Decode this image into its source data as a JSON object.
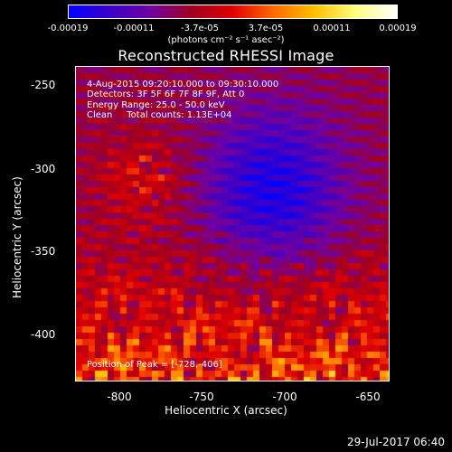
{
  "colorbar": {
    "ticks": [
      "-0.00019",
      "-0.00011",
      "-3.7e-05",
      "3.7e-05",
      "0.00011",
      "0.00019"
    ],
    "units": "(photons cm⁻² s⁻¹ asec⁻²)",
    "colormap": [
      "#0000ff",
      "#3a00c8",
      "#7000a0",
      "#a00020",
      "#e00000",
      "#ff6a00",
      "#ffc000",
      "#ffff80",
      "#ffffff"
    ]
  },
  "title": "Reconstructed RHESSI Image",
  "info": {
    "time": "4-Aug-2015 09:20:10.000 to 09:30:10.000",
    "detectors": "Detectors: 3F 5F 6F 7F 8F 9F, Att 0",
    "energy": "Energy Range: 25.0 - 50.0 keV",
    "clean": "Clean     Total counts: 1.13E+04",
    "peak": "Position of Peak = [-728,-406]"
  },
  "axes": {
    "xlabel": "Heliocentric X (arcsec)",
    "ylabel": "Heliocentric Y (arcsec)",
    "xticks": [
      "-800",
      "-750",
      "-700",
      "-650"
    ],
    "yticks": [
      "-250",
      "-300",
      "-350",
      "-400"
    ]
  },
  "footer": "29-Jul-2017 06:40"
}
